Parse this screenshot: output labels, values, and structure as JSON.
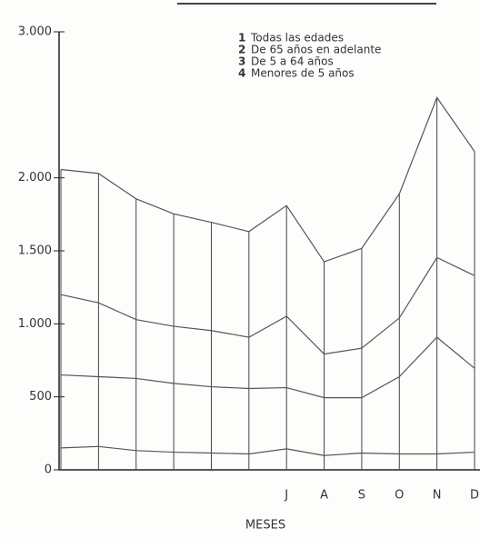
{
  "chart_data": {
    "type": "line",
    "categories": [
      null,
      null,
      null,
      null,
      null,
      null,
      "J",
      "A",
      "S",
      "O",
      "N",
      "D"
    ],
    "xlabel": "MESES",
    "legend_keys": [
      "1",
      "2",
      "3",
      "4"
    ],
    "series": [
      {
        "name": "Todas las edades",
        "color": "#555555",
        "values": [
          2057,
          2030,
          1856,
          1753,
          1695,
          1632,
          1810,
          1425,
          1517,
          1890,
          2550,
          2180
        ]
      },
      {
        "name": "De 65 años en adelante",
        "color": "#555555",
        "values": [
          1200,
          1144,
          1029,
          983,
          954,
          908,
          1052,
          793,
          833,
          1040,
          1454,
          1330
        ]
      },
      {
        "name": "De 5 a 64 años",
        "color": "#555555",
        "values": [
          650,
          638,
          626,
          592,
          569,
          557,
          563,
          494,
          494,
          638,
          908,
          695
        ]
      },
      {
        "name": "Menores de 5 años",
        "color": "#555555",
        "values": [
          150,
          160,
          132,
          121,
          115,
          109,
          144,
          98,
          115,
          109,
          109,
          121
        ]
      }
    ],
    "ylim": [
      0,
      3000
    ],
    "yticks": [
      0,
      500,
      {
        "value": 1000,
        "label": "1.000"
      },
      {
        "value": 1500,
        "label": "1.500"
      },
      {
        "value": 2000,
        "label": "2.000"
      },
      {
        "value": 3000,
        "label": "3.000"
      }
    ],
    "x_grid": true,
    "legend_position": "upper right"
  }
}
